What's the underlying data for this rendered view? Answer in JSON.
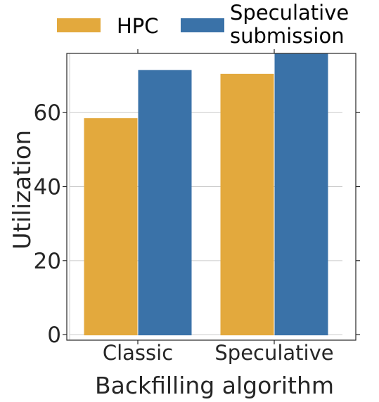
{
  "chart_data": {
    "type": "bar",
    "categories": [
      "Classic",
      "Speculative"
    ],
    "series": [
      {
        "name": "HPC",
        "values": [
          58.5,
          70.5
        ],
        "color": "#E3A93D"
      },
      {
        "name": "Speculative submission",
        "values": [
          71.5,
          76.0
        ],
        "color": "#3A72A8"
      }
    ],
    "xlabel": "Backfilling algorithm",
    "ylabel": "Utilization",
    "ylim": [
      -1.5,
      76.0
    ],
    "yticks": [
      0,
      20,
      40,
      60
    ],
    "grid": true,
    "legend": {
      "placement": "top",
      "entries": [
        {
          "label_lines": [
            "HPC"
          ]
        },
        {
          "label_lines": [
            "Speculative",
            "submission"
          ]
        }
      ]
    }
  }
}
